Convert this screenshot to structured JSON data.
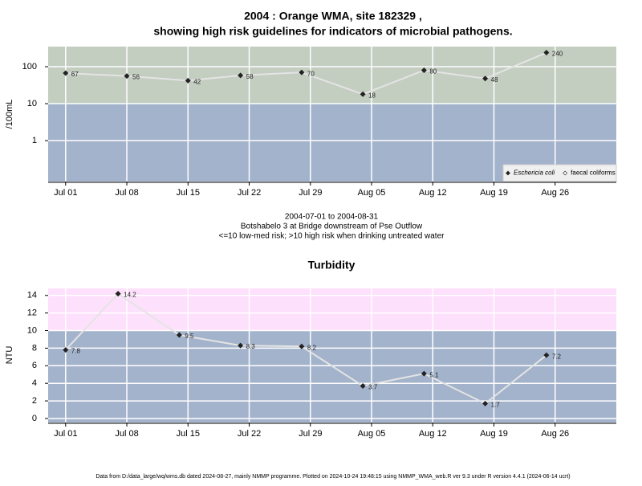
{
  "chart_data": [
    {
      "type": "line",
      "title": [
        "2004 : Orange WMA, site 182329 ,",
        "showing high risk guidelines for indicators of microbial pathogens."
      ],
      "subtitle": [
        "2004-07-01 to 2004-08-31",
        "Botshabelo 3 at Bridge downstream of Pse Outflow",
        "<=10 low-med risk; >10 high risk when drinking untreated water"
      ],
      "ylabel": "/100mL",
      "log_scale": true,
      "grid": true,
      "threshold": 10,
      "color_above": "#c3cdc0",
      "color_below": "#a3b3cb",
      "x": [
        "2004-07-01",
        "2004-07-08",
        "2004-07-15",
        "2004-07-21",
        "2004-07-28",
        "2004-08-04",
        "2004-08-11",
        "2004-08-18",
        "2004-08-25"
      ],
      "series": [
        {
          "name": "Eschericia coli",
          "color": "#222222",
          "values": [
            67,
            56,
            42,
            58,
            70,
            18,
            80,
            48,
            240
          ]
        },
        {
          "name": "faecal coliforms",
          "color": "#222222",
          "values": [
            null,
            null,
            null,
            null,
            null,
            null,
            null,
            null,
            null
          ]
        }
      ],
      "xlim": [
        "2004-06-29",
        "2004-09-02"
      ],
      "xticks": [
        {
          "value": "2004-07-01",
          "label": "Jul 01"
        },
        {
          "value": "2004-07-08",
          "label": "Jul 08"
        },
        {
          "value": "2004-07-15",
          "label": "Jul 15"
        },
        {
          "value": "2004-07-22",
          "label": "Jul 22"
        },
        {
          "value": "2004-07-29",
          "label": "Jul 29"
        },
        {
          "value": "2004-08-05",
          "label": "Aug 05"
        },
        {
          "value": "2004-08-12",
          "label": "Aug 12"
        },
        {
          "value": "2004-08-19",
          "label": "Aug 19"
        },
        {
          "value": "2004-08-26",
          "label": "Aug 26"
        }
      ],
      "ylim": [
        0.078,
        350
      ],
      "yticks": [
        1,
        10,
        100
      ],
      "legend": "bottom right"
    },
    {
      "type": "line",
      "title": "Turbidity",
      "ylabel": "NTU",
      "grid": true,
      "threshold": 10,
      "color_above": "#fde0fb",
      "color_below": "#a3b3cb",
      "x": [
        "2004-07-01",
        "2004-07-07",
        "2004-07-14",
        "2004-07-21",
        "2004-07-28",
        "2004-08-04",
        "2004-08-11",
        "2004-08-18",
        "2004-08-25"
      ],
      "series": [
        {
          "name": "Turbidity",
          "color": "#222222",
          "values": [
            7.8,
            14.2,
            9.5,
            8.3,
            8.2,
            3.7,
            5.1,
            1.7,
            7.2
          ]
        }
      ],
      "xlim": [
        "2004-06-29",
        "2004-09-02"
      ],
      "xticks": [
        {
          "value": "2004-07-01",
          "label": "Jul 01"
        },
        {
          "value": "2004-07-08",
          "label": "Jul 08"
        },
        {
          "value": "2004-07-15",
          "label": "Jul 15"
        },
        {
          "value": "2004-07-22",
          "label": "Jul 22"
        },
        {
          "value": "2004-07-29",
          "label": "Jul 29"
        },
        {
          "value": "2004-08-05",
          "label": "Aug 05"
        },
        {
          "value": "2004-08-12",
          "label": "Aug 12"
        },
        {
          "value": "2004-08-19",
          "label": "Aug 19"
        },
        {
          "value": "2004-08-26",
          "label": "Aug 26"
        }
      ],
      "ylim": [
        -0.46,
        14.8
      ],
      "yticks": [
        0,
        2,
        4,
        6,
        8,
        10,
        12,
        14
      ]
    }
  ],
  "footer": "Data from D:/data_large/wq/wms.db dated 2024-08-27, mainly NMMP programme. Plotted on 2024-10-24 19:48:15 using NMMP_WMA_web.R ver 9.3 under R version 4.4.1 (2024-06-14 ucrt)"
}
